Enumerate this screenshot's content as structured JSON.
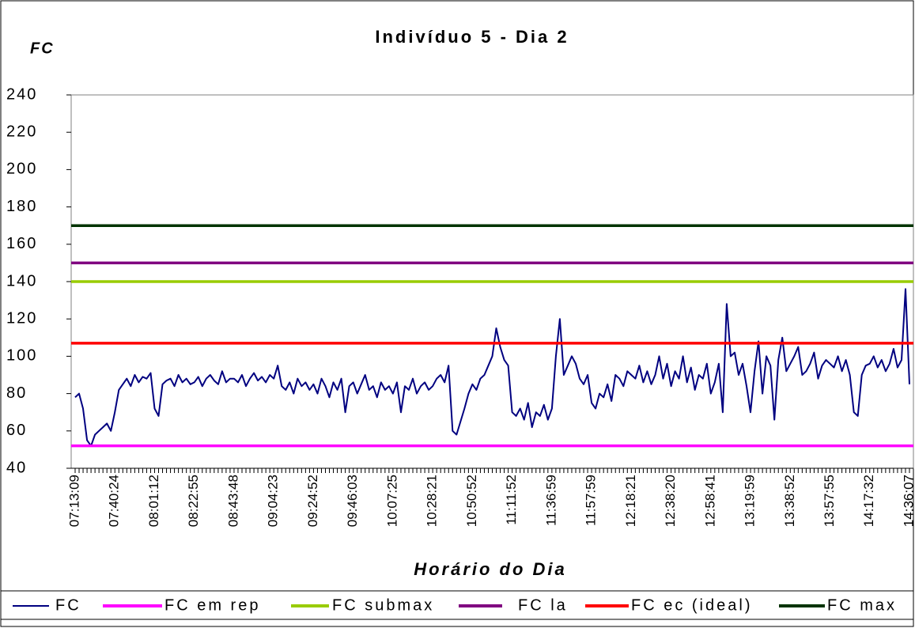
{
  "chart_data": {
    "type": "line",
    "title": "Indivíduo 5 - Dia 2",
    "y_label": "FC",
    "x_label": "Horário do Dia",
    "ylim": [
      40,
      240
    ],
    "yticks": [
      40,
      60,
      80,
      100,
      120,
      140,
      160,
      180,
      200,
      220,
      240
    ],
    "categories": [
      "07:13:09",
      null,
      null,
      null,
      null,
      null,
      null,
      null,
      null,
      null,
      "07:40:24",
      null,
      null,
      null,
      null,
      null,
      null,
      null,
      null,
      null,
      "08:01:12",
      null,
      null,
      null,
      null,
      null,
      null,
      null,
      null,
      null,
      "08:22:55",
      null,
      null,
      null,
      null,
      null,
      null,
      null,
      null,
      null,
      "08:43:48",
      null,
      null,
      null,
      null,
      null,
      null,
      null,
      null,
      null,
      "09:04:23",
      null,
      null,
      null,
      null,
      null,
      null,
      null,
      null,
      null,
      "09:24:52",
      null,
      null,
      null,
      null,
      null,
      null,
      null,
      null,
      null,
      "09:46:03",
      null,
      null,
      null,
      null,
      null,
      null,
      null,
      null,
      null,
      "10:07:25",
      null,
      null,
      null,
      null,
      null,
      null,
      null,
      null,
      null,
      "10:28:21",
      null,
      null,
      null,
      null,
      null,
      null,
      null,
      null,
      null,
      "10:50:52",
      null,
      null,
      null,
      null,
      null,
      null,
      null,
      null,
      null,
      "11:11:52",
      null,
      null,
      null,
      null,
      null,
      null,
      null,
      null,
      null,
      "11:36:59",
      null,
      null,
      null,
      null,
      null,
      null,
      null,
      null,
      null,
      "11:57:59",
      null,
      null,
      null,
      null,
      null,
      null,
      null,
      null,
      null,
      "12:18:21",
      null,
      null,
      null,
      null,
      null,
      null,
      null,
      null,
      null,
      "12:38:20",
      null,
      null,
      null,
      null,
      null,
      null,
      null,
      null,
      null,
      "12:58:41",
      null,
      null,
      null,
      null,
      null,
      null,
      null,
      null,
      null,
      "13:19:59",
      null,
      null,
      null,
      null,
      null,
      null,
      null,
      null,
      null,
      "13:38:52",
      null,
      null,
      null,
      null,
      null,
      null,
      null,
      null,
      null,
      "13:57:55",
      null,
      null,
      null,
      null,
      null,
      null,
      null,
      null,
      null,
      "14:17:32",
      null,
      null,
      null,
      null,
      null,
      null,
      null,
      null,
      null,
      "14:36:07"
    ],
    "series": [
      {
        "name": "FC",
        "color": "#000080",
        "values": [
          78,
          80,
          72,
          55,
          52,
          58,
          60,
          62,
          64,
          60,
          70,
          82,
          85,
          88,
          84,
          90,
          86,
          89,
          88,
          91,
          72,
          68,
          85,
          87,
          88,
          84,
          90,
          86,
          88,
          85,
          86,
          89,
          84,
          88,
          90,
          87,
          85,
          92,
          86,
          88,
          88,
          86,
          90,
          84,
          88,
          91,
          87,
          89,
          86,
          90,
          88,
          95,
          84,
          82,
          86,
          80,
          88,
          84,
          86,
          82,
          85,
          80,
          88,
          84,
          78,
          86,
          82,
          88,
          70,
          84,
          86,
          80,
          85,
          90,
          82,
          84,
          78,
          86,
          82,
          84,
          80,
          86,
          70,
          84,
          82,
          88,
          80,
          84,
          86,
          82,
          84,
          88,
          90,
          86,
          95,
          60,
          58,
          65,
          72,
          80,
          85,
          82,
          88,
          90,
          95,
          100,
          115,
          105,
          98,
          95,
          70,
          68,
          72,
          66,
          75,
          62,
          70,
          68,
          74,
          66,
          72,
          100,
          120,
          90,
          95,
          100,
          96,
          88,
          85,
          90,
          75,
          72,
          80,
          78,
          85,
          76,
          90,
          88,
          84,
          92,
          90,
          88,
          95,
          86,
          92,
          85,
          90,
          100,
          88,
          96,
          84,
          92,
          88,
          100,
          86,
          94,
          82,
          90,
          88,
          96,
          80,
          86,
          96,
          70,
          128,
          100,
          102,
          90,
          96,
          84,
          70,
          92,
          108,
          80,
          100,
          95,
          66,
          98,
          110,
          92,
          96,
          100,
          105,
          90,
          92,
          96,
          102,
          88,
          95,
          98,
          96,
          94,
          100,
          92,
          98,
          90,
          70,
          68,
          90,
          95,
          96,
          100,
          94,
          98,
          92,
          96,
          104,
          94,
          98,
          136,
          85
        ]
      },
      {
        "name": "FC em rep",
        "color": "#ff00ff",
        "value": 52
      },
      {
        "name": "FC submax",
        "color": "#99cc00",
        "value": 140
      },
      {
        "name": "FC la",
        "color": "#800080",
        "value": 150
      },
      {
        "name": "FC ec (ideal)",
        "color": "#ff0000",
        "value": 107
      },
      {
        "name": "FC max",
        "color": "#003300",
        "value": 170
      }
    ]
  }
}
